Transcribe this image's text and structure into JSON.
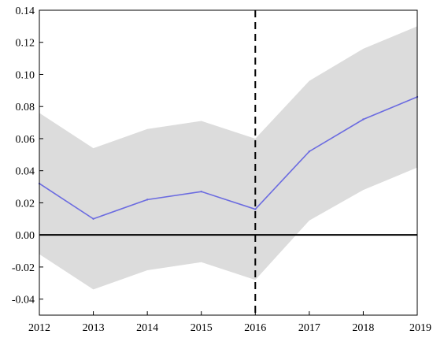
{
  "chart_data": {
    "type": "line",
    "x": [
      2012,
      2013,
      2014,
      2015,
      2016,
      2017,
      2018,
      2019
    ],
    "xticks": [
      "2012",
      "2013",
      "2014",
      "2015",
      "2016",
      "2017",
      "2018",
      "2019"
    ],
    "yticks": [
      "0.14",
      "0.12",
      "0.10",
      "0.08",
      "0.06",
      "0.04",
      "0.02",
      "0.00",
      "-0.02",
      "-0.04"
    ],
    "ytick_values": [
      0.14,
      0.12,
      0.1,
      0.08,
      0.06,
      0.04,
      0.02,
      0.0,
      -0.02,
      -0.04
    ],
    "series": [
      {
        "values": [
          0.032,
          0.01,
          0.022,
          0.027,
          0.016,
          0.052,
          0.072,
          0.086
        ]
      }
    ],
    "band": {
      "lower": [
        -0.012,
        -0.034,
        -0.022,
        -0.017,
        -0.028,
        0.009,
        0.028,
        0.042
      ],
      "upper": [
        0.076,
        0.054,
        0.066,
        0.071,
        0.06,
        0.096,
        0.116,
        0.13
      ]
    },
    "ylim": [
      -0.05,
      0.14
    ],
    "xlim": [
      2012,
      2019
    ],
    "reference_hline": 0,
    "reference_vline": 2016,
    "grid": false,
    "colors": {
      "line": "#6b6be0",
      "band": "#dcdcdc",
      "axis": "#000000"
    },
    "title": "",
    "xlabel": "",
    "ylabel": ""
  }
}
